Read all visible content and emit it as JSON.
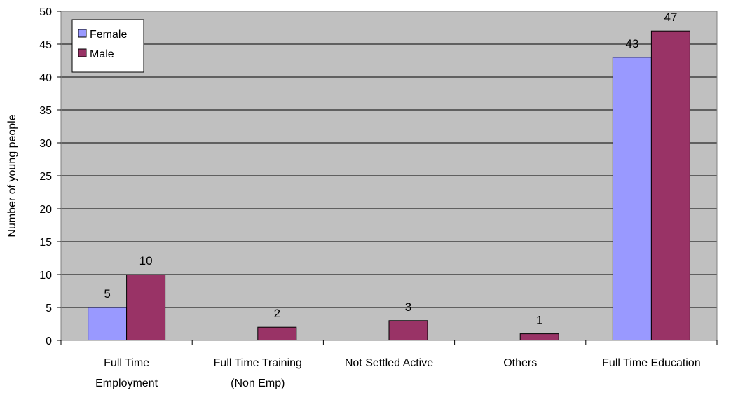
{
  "chart_data": {
    "type": "bar",
    "title": "",
    "xlabel": "",
    "ylabel": "Number of young people",
    "ylim": [
      0,
      50
    ],
    "yticks": [
      0,
      5,
      10,
      15,
      20,
      25,
      30,
      35,
      40,
      45,
      50
    ],
    "grid": true,
    "legend_position": "top-left",
    "categories": [
      [
        "Full Time",
        "Employment"
      ],
      [
        "Full Time Training",
        "(Non Emp)"
      ],
      [
        "Not Settled Active"
      ],
      [
        "Others"
      ],
      [
        "Full Time Education"
      ]
    ],
    "series": [
      {
        "name": "Female",
        "color": "#9999FF",
        "values": [
          5,
          0,
          0,
          0,
          43
        ]
      },
      {
        "name": "Male",
        "color": "#993366",
        "values": [
          10,
          2,
          3,
          1,
          47
        ]
      }
    ],
    "plot_background": "#C0C0C0"
  }
}
